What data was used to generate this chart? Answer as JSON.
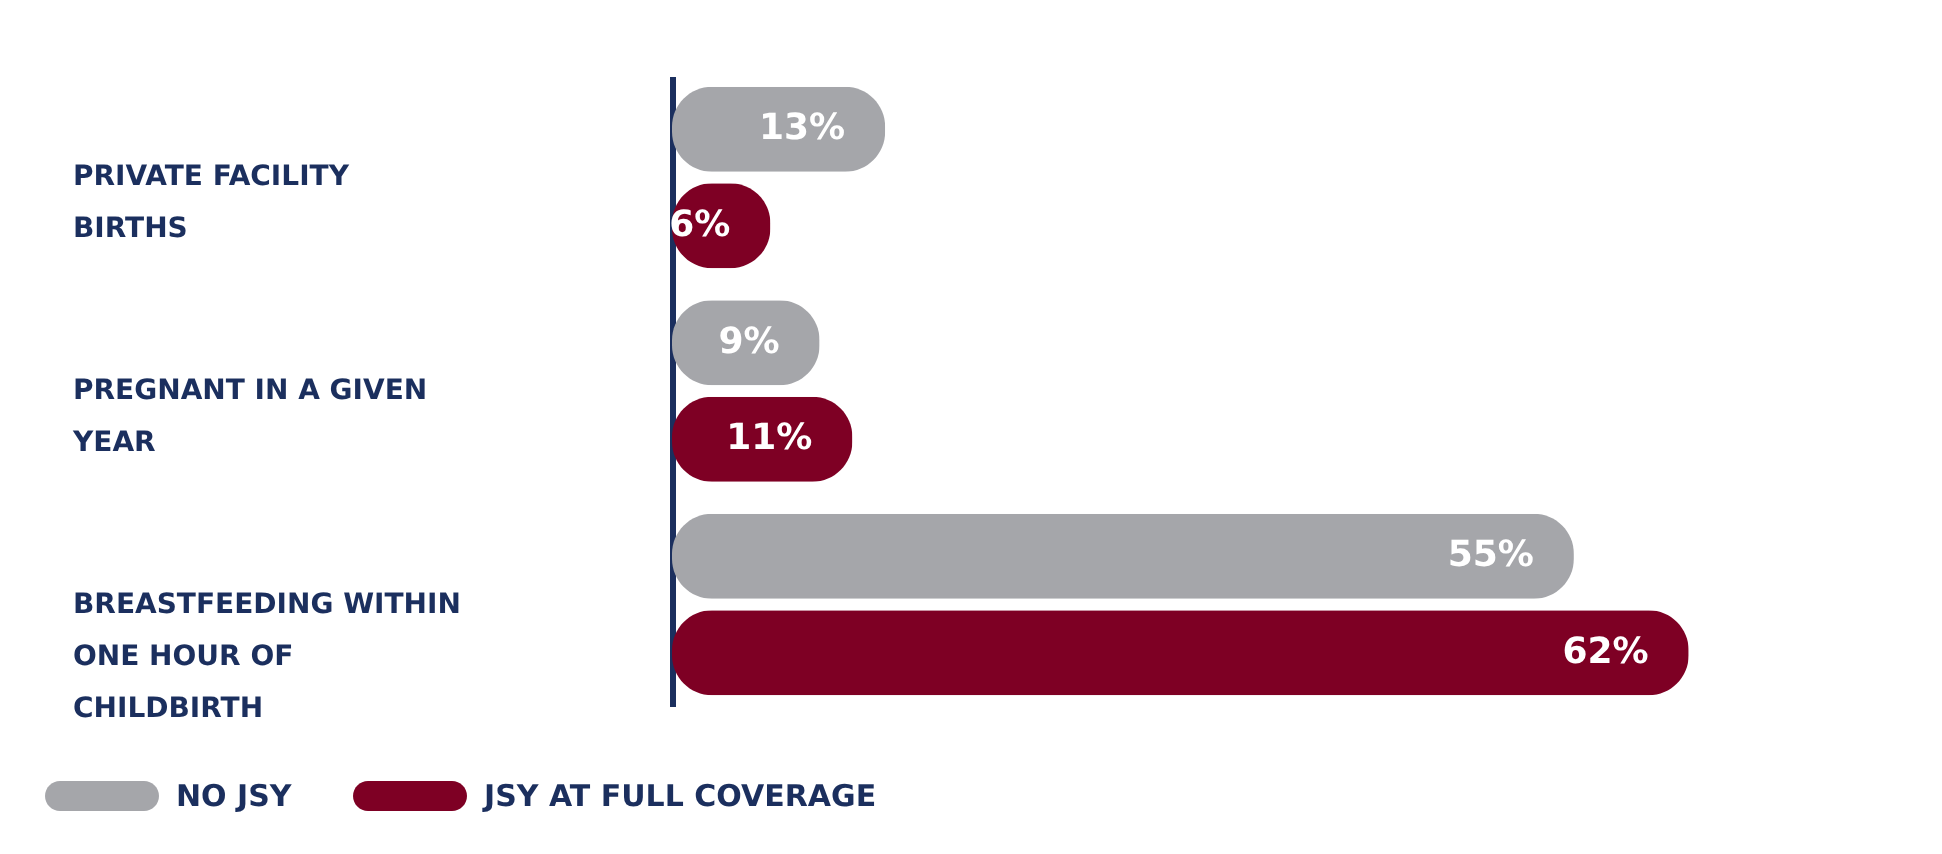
{
  "chart_data": {
    "type": "bar",
    "orientation": "horizontal",
    "categories": [
      "PRIVATE FACILITY BIRTHS",
      "PREGNANT IN A GIVEN YEAR",
      "BREASTFEEDING WITHIN ONE HOUR OF CHILDBIRTH"
    ],
    "series": [
      {
        "name": "NO JSY",
        "color": "#a5a6aa",
        "values": [
          13,
          9,
          55
        ],
        "value_labels": [
          "13%",
          "9%",
          "55%"
        ]
      },
      {
        "name": "JSY AT FULL COVERAGE",
        "color": "#7e0024",
        "values": [
          6,
          11,
          62
        ],
        "value_labels": [
          "6%",
          "11%",
          "62%"
        ]
      }
    ],
    "legend": "bottom left",
    "grid": false
  }
}
